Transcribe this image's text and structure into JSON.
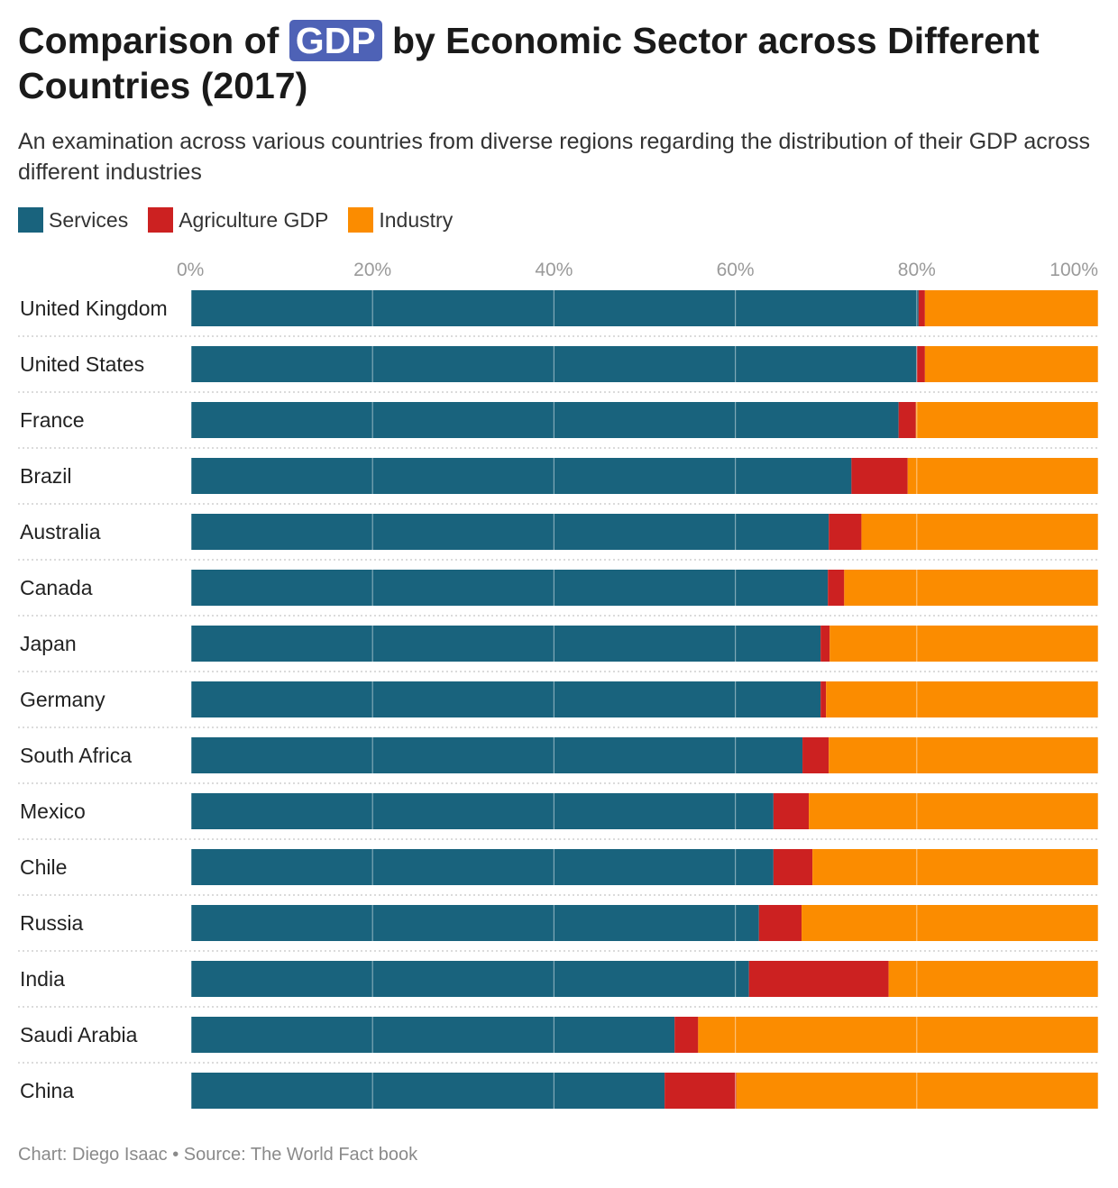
{
  "header": {
    "title_pre": "Comparison of ",
    "title_highlight": "GDP",
    "title_post": " by Economic Sector across Different Countries (2017)",
    "subtitle": "An examination across various countries from diverse regions regarding the distribution of their GDP across different industries"
  },
  "legend": [
    {
      "label": "Services",
      "color": "#19637d"
    },
    {
      "label": "Agriculture GDP",
      "color": "#cc2121"
    },
    {
      "label": "Industry",
      "color": "#fb8c00"
    }
  ],
  "footer": {
    "credit": "Chart: Diego Isaac • Source: The World Fact book"
  },
  "chart_data": {
    "type": "bar",
    "orientation": "horizontal",
    "stacked": true,
    "title": "Comparison of GDP by Economic Sector across Different Countries (2017)",
    "xlim": [
      0,
      100
    ],
    "x_ticks": [
      "0%",
      "20%",
      "40%",
      "60%",
      "80%",
      "100%"
    ],
    "grid": true,
    "legend_position": "top-left",
    "categories": [
      "United Kingdom",
      "United States",
      "France",
      "Brazil",
      "Australia",
      "Canada",
      "Japan",
      "Germany",
      "South Africa",
      "Mexico",
      "Chile",
      "Russia",
      "India",
      "Saudi Arabia",
      "China"
    ],
    "series": [
      {
        "name": "Services",
        "color": "#19637d",
        "values": [
          80.2,
          80.0,
          78.0,
          72.8,
          70.3,
          70.2,
          69.4,
          69.4,
          67.4,
          64.2,
          64.2,
          62.6,
          61.5,
          53.3,
          52.2
        ]
      },
      {
        "name": "Agriculture GDP",
        "color": "#cc2121",
        "values": [
          0.7,
          0.9,
          1.9,
          6.2,
          3.6,
          1.8,
          1.0,
          0.6,
          2.9,
          3.9,
          4.3,
          4.7,
          15.4,
          2.6,
          7.9
        ]
      },
      {
        "name": "Industry",
        "color": "#fb8c00",
        "values": [
          19.1,
          19.1,
          20.1,
          21.0,
          26.1,
          28.0,
          29.6,
          30.0,
          29.7,
          31.9,
          31.5,
          32.7,
          23.1,
          44.1,
          39.9
        ]
      }
    ]
  }
}
